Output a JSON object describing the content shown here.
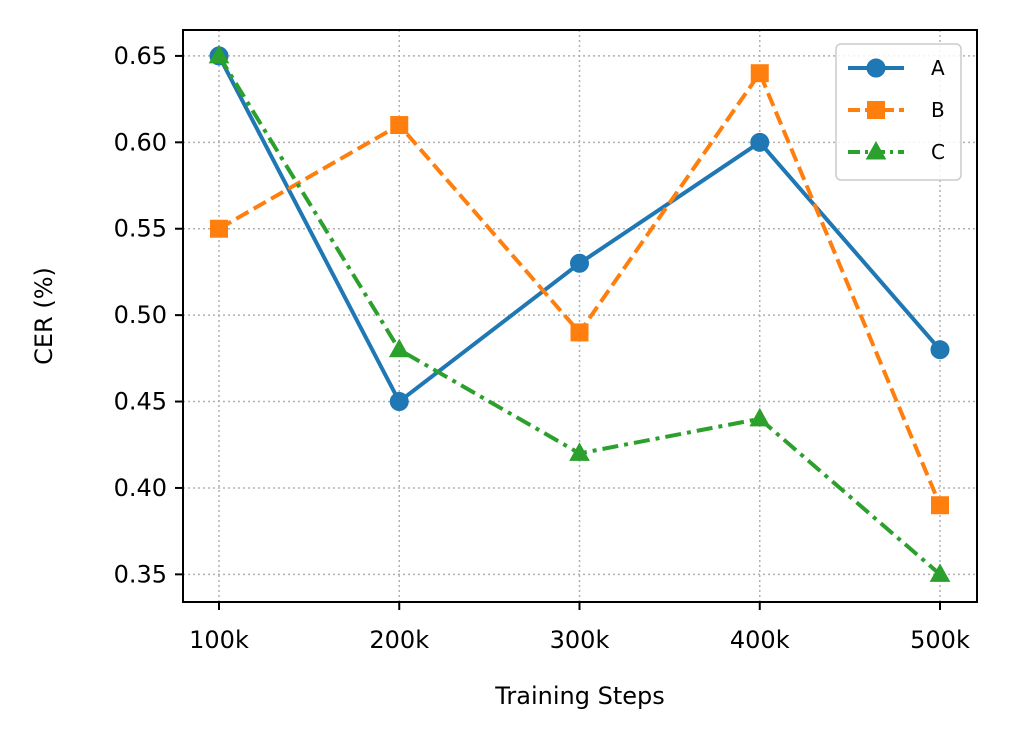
{
  "chart_data": {
    "type": "line",
    "title": "",
    "xlabel": "Training Steps",
    "ylabel": "CER (%)",
    "categories": [
      "100k",
      "200k",
      "300k",
      "400k",
      "500k"
    ],
    "ylim": [
      0.334,
      0.665
    ],
    "yticks": [
      "0.35",
      "0.40",
      "0.45",
      "0.50",
      "0.55",
      "0.60",
      "0.65"
    ],
    "grid": true,
    "legend_position": "top-right",
    "series": [
      {
        "name": "A",
        "values": [
          0.65,
          0.45,
          0.53,
          0.6,
          0.48
        ],
        "color": "#1f77b4",
        "marker": "circle",
        "linestyle": "solid"
      },
      {
        "name": "B",
        "values": [
          0.55,
          0.61,
          0.49,
          0.64,
          0.39
        ],
        "color": "#ff7f0e",
        "marker": "square",
        "linestyle": "dashed"
      },
      {
        "name": "C",
        "values": [
          0.65,
          0.48,
          0.42,
          0.44,
          0.35
        ],
        "color": "#2ca02c",
        "marker": "triangle",
        "linestyle": "dashdot"
      }
    ]
  }
}
